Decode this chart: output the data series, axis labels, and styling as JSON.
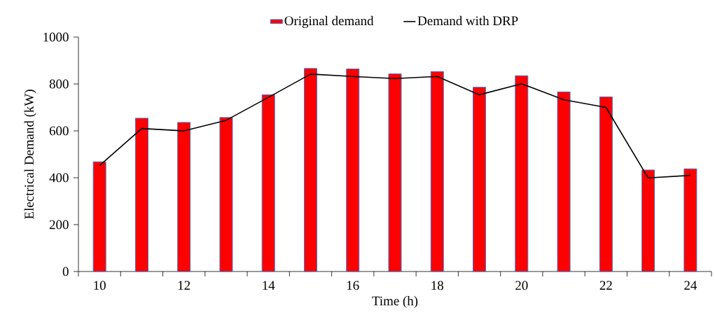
{
  "chart_data": {
    "type": "bar",
    "xlabel": "Time (h)",
    "ylabel": "Electrical Demand (kW)",
    "categories": [
      "10",
      null,
      "12",
      null,
      "14",
      null,
      "16",
      null,
      "18",
      null,
      "20",
      null,
      "22",
      null,
      "24"
    ],
    "series": [
      {
        "name": "Original demand",
        "color": "#ff0000",
        "values": [
          468,
          654,
          636,
          657,
          754,
          866,
          864,
          843,
          853,
          786,
          835,
          766,
          745,
          433,
          438
        ]
      },
      {
        "name": "Demand with DRP",
        "type": "line",
        "color": "#000000",
        "values": [
          452,
          610,
          600,
          645,
          743,
          842,
          832,
          823,
          832,
          754,
          801,
          733,
          700,
          399,
          410
        ]
      }
    ],
    "ylim": [
      0,
      1000
    ],
    "yticks": [
      0,
      200,
      400,
      600,
      800,
      1000
    ],
    "legend": "top",
    "grid": false,
    "marker": "none",
    "line_style": "solid"
  }
}
